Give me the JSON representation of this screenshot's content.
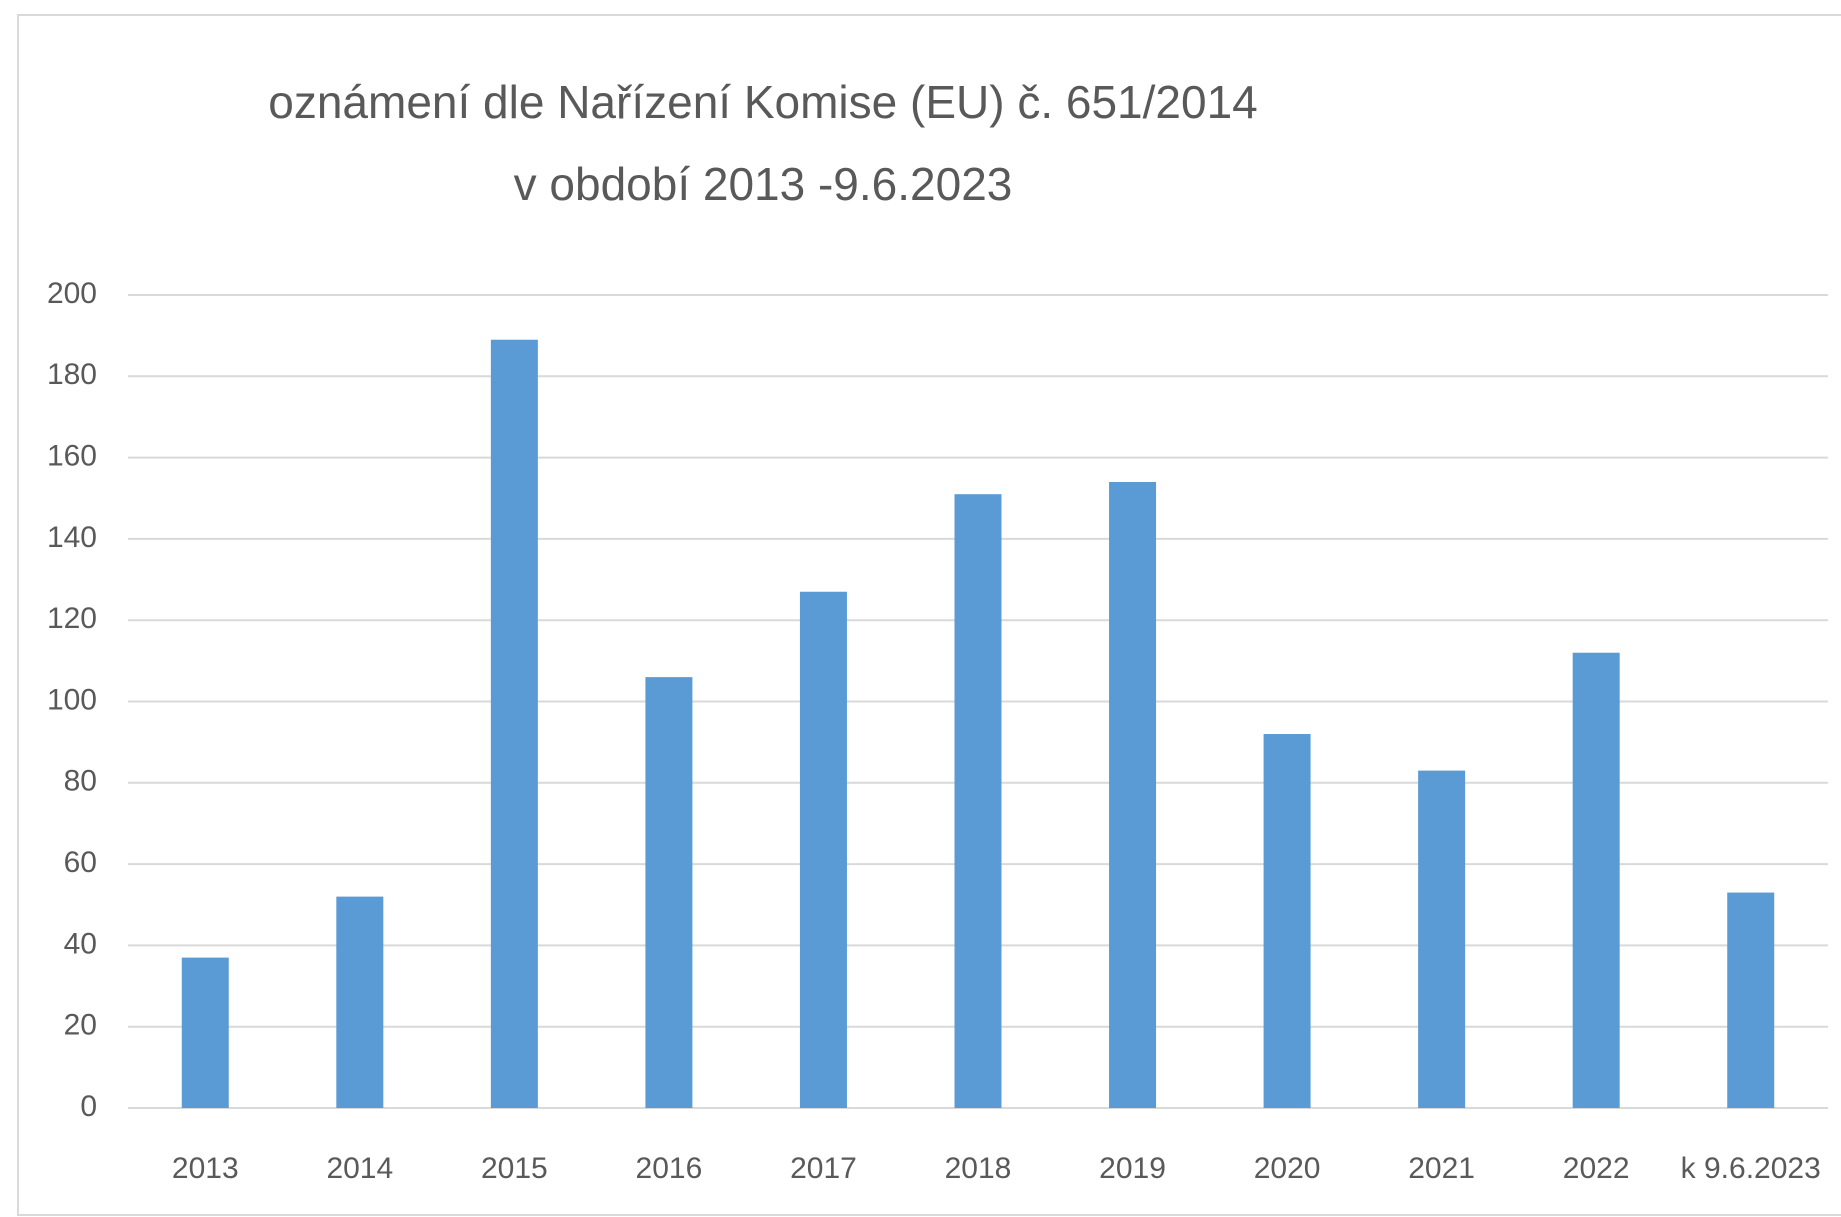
{
  "chart_data": {
    "type": "bar",
    "title": [
      "oznámení dle Nařízení Komise (EU) č. 651/2014",
      "v období 2013 -9.6.2023"
    ],
    "categories": [
      "2013",
      "2014",
      "2015",
      "2016",
      "2017",
      "2018",
      "2019",
      "2020",
      "2021",
      "2022",
      "k 9.6.2023"
    ],
    "values": [
      37,
      52,
      189,
      106,
      127,
      151,
      154,
      92,
      83,
      112,
      53
    ],
    "color": "#5b9bd5",
    "ylim": [
      0,
      200
    ],
    "yticks": [
      0,
      20,
      40,
      60,
      80,
      100,
      120,
      140,
      160,
      180,
      200
    ],
    "grid": true
  }
}
